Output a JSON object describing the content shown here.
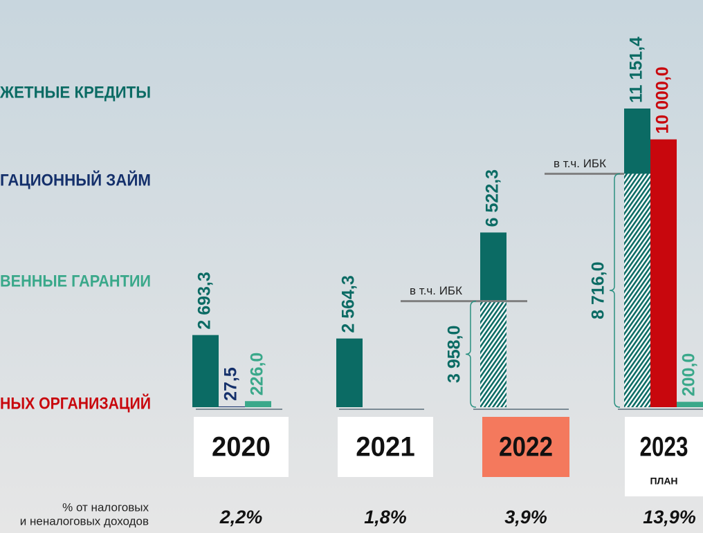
{
  "chart_data": {
    "type": "bar",
    "categories": [
      "2020",
      "2021",
      "2022",
      "2023"
    ],
    "category_notes": [
      null,
      null,
      null,
      "ПЛАН"
    ],
    "highlight_category": "2022",
    "series": [
      {
        "name": "ЖЕТНЫЕ КРЕДИТЫ",
        "color": "#0b6b64",
        "values": [
          2693.3,
          2564.3,
          6522.3,
          11151.4
        ],
        "value_labels": [
          "2 693,3",
          "2 564,3",
          "6 522,3",
          "11 151,4"
        ]
      },
      {
        "name": "ГАЦИОННЫЙ ЗАЙМ",
        "color": "#14306b",
        "values": [
          27.5,
          null,
          null,
          null
        ],
        "value_labels": [
          "27,5",
          null,
          null,
          null
        ]
      },
      {
        "name": "ВЕННЫЕ ГАРАНТИИ",
        "color": "#3aa88a",
        "values": [
          226.0,
          null,
          null,
          200.0
        ],
        "value_labels": [
          "226,0",
          null,
          null,
          "200,0"
        ]
      },
      {
        "name": "НЫХ ОРГАНИЗАЦИЙ",
        "color": "#c8070d",
        "values": [
          null,
          null,
          null,
          10000.0
        ],
        "value_labels": [
          null,
          null,
          null,
          "10 000,0"
        ]
      }
    ],
    "ibk": {
      "label": "в т.ч. ИБК",
      "values": [
        null,
        null,
        3958.0,
        8716.0
      ],
      "value_labels": [
        null,
        null,
        "3 958,0",
        "8 716,0"
      ]
    },
    "share_label": [
      "% от налоговых",
      "и неналоговых доходов"
    ],
    "shares": [
      "2,2%",
      "1,8%",
      "3,9%",
      "13,9%"
    ]
  }
}
